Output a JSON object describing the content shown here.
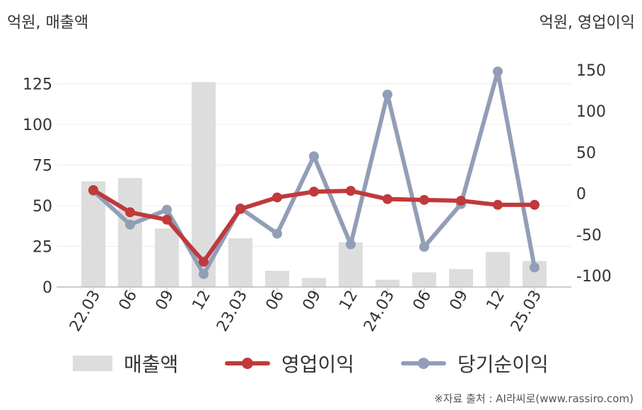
{
  "units": {
    "left": "억원, 매출액",
    "right": "억원, 영업이익"
  },
  "source": "※자료 출처 : AI라씨로(www.rassiro.com)",
  "legend": [
    {
      "label": "매출액",
      "type": "bar",
      "color": "#dddddd"
    },
    {
      "label": "영업이익",
      "type": "line",
      "color": "#c0393b"
    },
    {
      "label": "당기순이익",
      "type": "line",
      "color": "#929eb7"
    }
  ],
  "chart_data": {
    "type": "bar+line",
    "categories": [
      "22.03",
      "06",
      "09",
      "12",
      "23.03",
      "06",
      "09",
      "12",
      "24.03",
      "06",
      "09",
      "12",
      "25.03"
    ],
    "left_axis": {
      "range": [
        0,
        140
      ],
      "ticks": [
        0,
        25,
        50,
        75,
        100,
        125
      ],
      "label": "억원, 매출액"
    },
    "right_axis": {
      "range": [
        -120,
        160
      ],
      "ticks": [
        -100,
        -50,
        0,
        50,
        100,
        150
      ],
      "label": "억원, 영업이익"
    },
    "series": [
      {
        "name": "매출액",
        "type": "bar",
        "axis": "left",
        "color": "#dddddd",
        "values": [
          65,
          67,
          36,
          126,
          30,
          10,
          5.5,
          27.5,
          4.5,
          9,
          11,
          21.5,
          16
        ]
      },
      {
        "name": "영업이익",
        "type": "line",
        "axis": "right",
        "color": "#c0393b",
        "values": [
          4,
          -23,
          -32,
          -83,
          -19,
          -5,
          2,
          3,
          -7,
          -8,
          -9,
          -14,
          -14
        ]
      },
      {
        "name": "당기순이익",
        "type": "line",
        "axis": "right",
        "color": "#929eb7",
        "values": [
          3,
          -38,
          -20,
          -98,
          -18,
          -49,
          45,
          -62,
          120,
          -65,
          -13,
          148,
          -90
        ]
      }
    ],
    "grid": true,
    "legend_position": "bottom"
  }
}
